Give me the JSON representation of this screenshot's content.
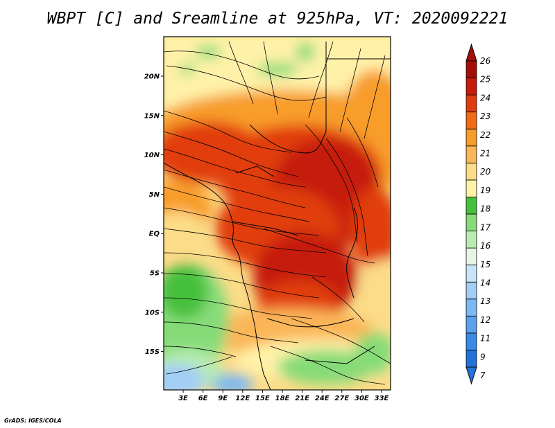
{
  "title": "WBPT [C] and Sreamline at 925hPa, VT: 2020092221",
  "credit": "GrADS: IGES/COLA",
  "map": {
    "lon_ticks": [
      "3E",
      "6E",
      "9E",
      "12E",
      "15E",
      "18E",
      "21E",
      "24E",
      "27E",
      "30E",
      "33E"
    ],
    "lat_ticks": [
      "20N",
      "15N",
      "10N",
      "5N",
      "EQ",
      "5S",
      "10S",
      "15S"
    ]
  },
  "colorbar": {
    "levels": [
      "7",
      "9",
      "11",
      "12",
      "13",
      "14",
      "15",
      "16",
      "17",
      "18",
      "19",
      "20",
      "21",
      "22",
      "23",
      "24",
      "25",
      "26"
    ],
    "colors": [
      "#2372d8",
      "#3a8ae6",
      "#5aa2ee",
      "#7cb8f2",
      "#a2cef6",
      "#c8e4fa",
      "#e6f6e6",
      "#b8ecb0",
      "#86db78",
      "#46c03c",
      "#fff2a8",
      "#fcdc88",
      "#fbb658",
      "#f89c2a",
      "#f26a14",
      "#e13c10",
      "#c61a0a",
      "#a50f08"
    ],
    "extend_low_color": "#2372d8",
    "extend_high_color": "#a50f08"
  }
}
